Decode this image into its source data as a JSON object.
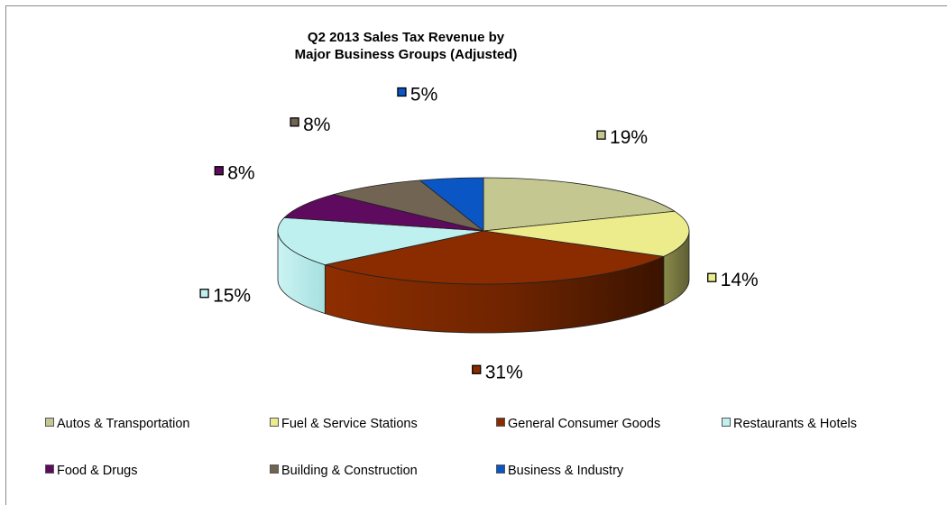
{
  "chart_data": {
    "type": "pie",
    "style": "3d",
    "title": [
      "Q2 2013 Sales Tax Revenue by",
      "Major Business Groups (Adjusted)"
    ],
    "slices": [
      {
        "label": "Autos & Transportation",
        "value": 19,
        "display": "19%",
        "color": "#c4c890"
      },
      {
        "label": "Fuel & Service Stations",
        "value": 14,
        "display": "14%",
        "color": "#ecec8c"
      },
      {
        "label": "General Consumer Goods",
        "value": 31,
        "display": "31%",
        "color": "#8b2c00"
      },
      {
        "label": "Restaurants & Hotels",
        "value": 15,
        "display": "15%",
        "color": "#bff0f0"
      },
      {
        "label": "Food & Drugs",
        "value": 8,
        "display": "8%",
        "color": "#5e0a5e"
      },
      {
        "label": "Building & Construction",
        "value": 8,
        "display": "8%",
        "color": "#726452"
      },
      {
        "label": "Business & Industry",
        "value": 5,
        "display": "5%",
        "color": "#0a56c4"
      }
    ],
    "legend_position": "bottom"
  }
}
